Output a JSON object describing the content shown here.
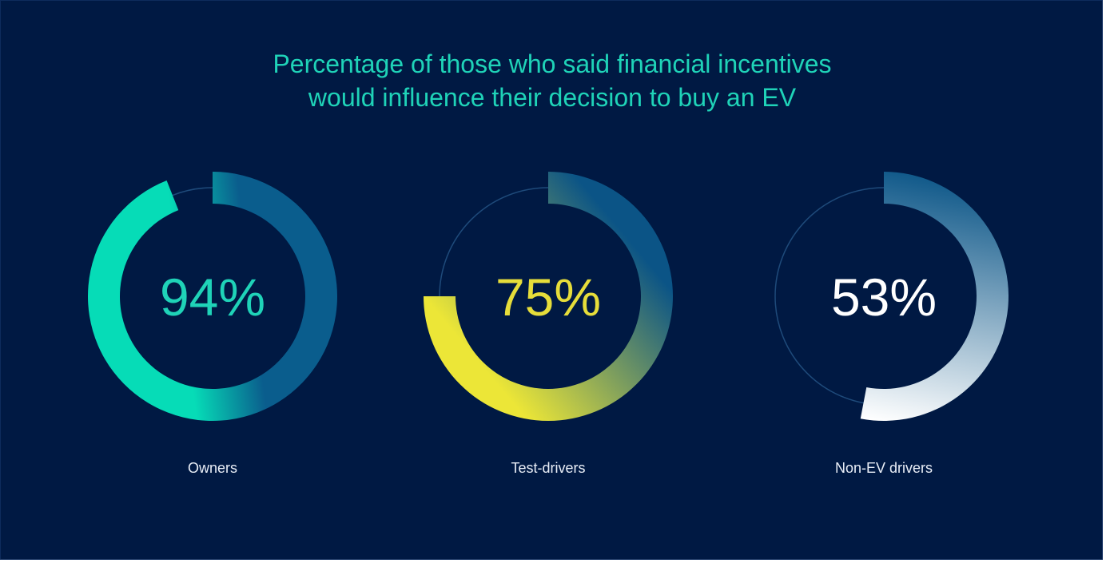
{
  "chart_data": {
    "type": "donut",
    "title": "Percentage of those who said financial incentives would influence their decision to buy an EV",
    "title_lines": [
      "Percentage of those who said financial incentives",
      "would influence their decision to buy an EV"
    ],
    "unit": "%",
    "categories": [
      "Owners",
      "Test-drivers",
      "Non-EV drivers"
    ],
    "values": [
      94,
      75,
      53
    ],
    "value_labels": [
      "94%",
      "75%",
      "53%"
    ],
    "max": 100,
    "grid": false,
    "legend": "none",
    "colors": {
      "background": "#001943",
      "title": "#1fd3b8",
      "track": "#1e4a7a",
      "category_label": "#e9eef7"
    },
    "series_styles": [
      {
        "label_color": "#1fd3b8",
        "gradient_start": "#0a5d8d",
        "gradient_end": "#06dcb7"
      },
      {
        "label_color": "#e6dd3a",
        "gradient_start": "#0b5486",
        "gradient_end": "#ece637"
      },
      {
        "label_color": "#ffffff",
        "gradient_start": "#0f5889",
        "gradient_end": "#ffffff"
      }
    ]
  }
}
